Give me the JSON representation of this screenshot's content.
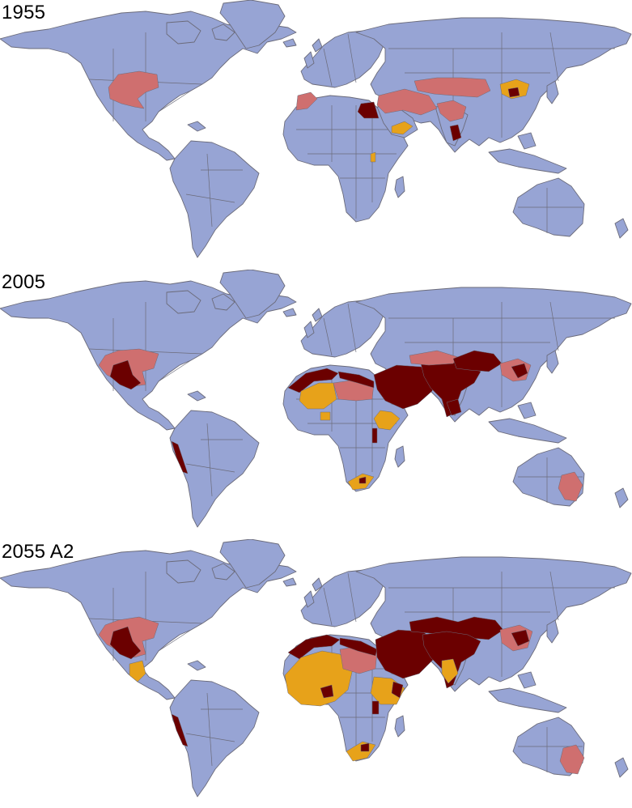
{
  "colors": {
    "base": "#97a4d4",
    "border": "#6b6b7a",
    "moderate": "#cf6f6f",
    "high": "#e7a21a",
    "severe": "#6b0000"
  },
  "panels": [
    {
      "label": "1955"
    },
    {
      "label": "2005"
    },
    {
      "label": "2055 A2"
    }
  ]
}
